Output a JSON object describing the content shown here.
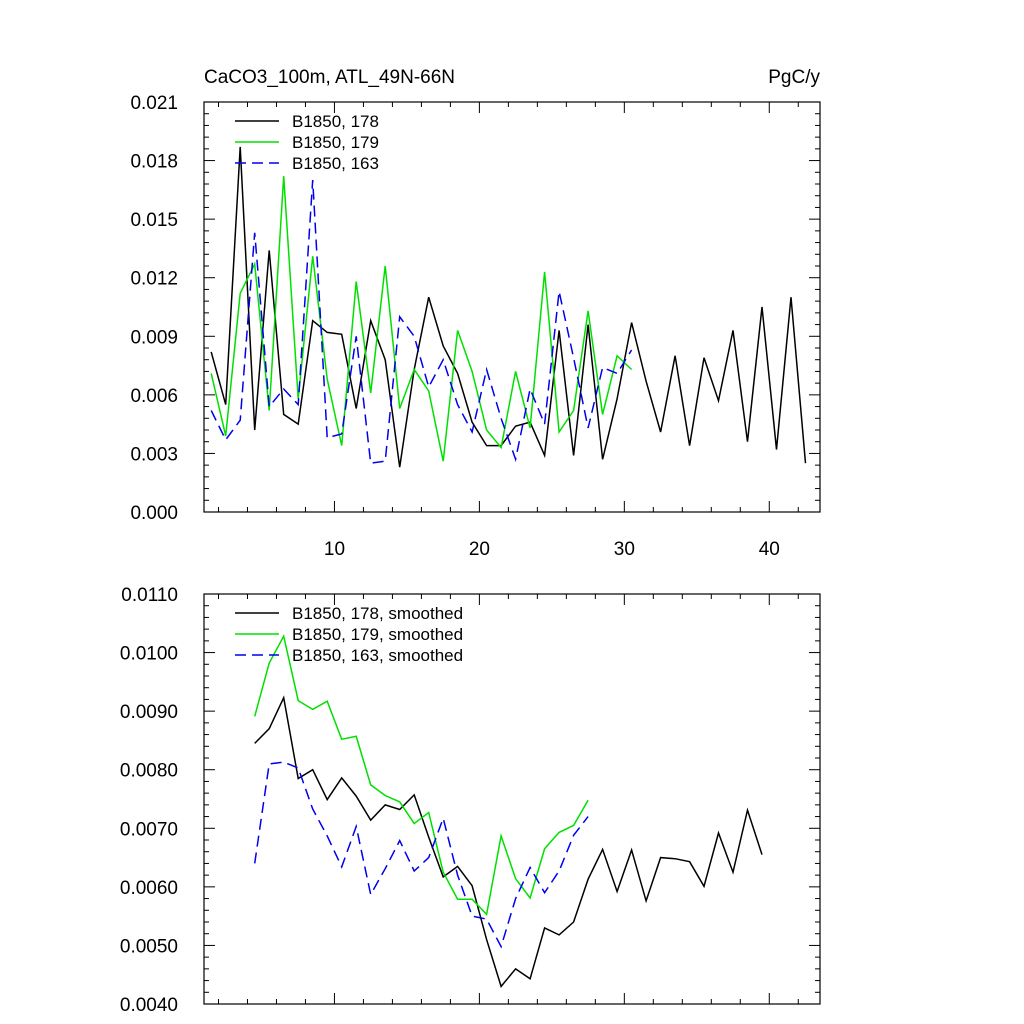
{
  "colors": {
    "black": "#000000",
    "green": "#00e000",
    "blue": "#0000ee"
  },
  "chart_data": [
    {
      "type": "line",
      "title": "CaCO3_100m, ATL_49N-66N",
      "units": "PgC/y",
      "xlabel": "",
      "ylabel": "",
      "xlim": [
        1,
        43.5
      ],
      "ylim": [
        0,
        0.021
      ],
      "xticks": [
        10,
        20,
        30,
        40
      ],
      "yticks": [
        0.0,
        0.003,
        0.006,
        0.009,
        0.012,
        0.015,
        0.018,
        0.021
      ],
      "ytick_labels": [
        "0.000",
        "0.003",
        "0.006",
        "0.009",
        "0.012",
        "0.015",
        "0.018",
        "0.021"
      ],
      "xtick_labels": [
        "10",
        "20",
        "30",
        "40"
      ],
      "legend_position": "top-left",
      "series": [
        {
          "name": "B1850, 178",
          "color": "black",
          "dash": "solid",
          "x": [
            1.5,
            2.5,
            3.5,
            4.5,
            5.5,
            6.5,
            7.5,
            8.5,
            9.5,
            10.5,
            11.5,
            12.5,
            13.5,
            14.5,
            15.5,
            16.5,
            17.5,
            18.5,
            19.5,
            20.5,
            21.5,
            22.5,
            23.5,
            24.5,
            25.5,
            26.5,
            27.5,
            28.5,
            29.5,
            30.5,
            31.5,
            32.5,
            33.5,
            34.5,
            35.5,
            36.5,
            37.5,
            38.5,
            39.5,
            40.5,
            41.5,
            42.5
          ],
          "y": [
            0.0082,
            0.0055,
            0.0187,
            0.0042,
            0.0134,
            0.005,
            0.0045,
            0.0098,
            0.0092,
            0.0091,
            0.0053,
            0.0098,
            0.0078,
            0.0023,
            0.0073,
            0.011,
            0.0085,
            0.0071,
            0.0046,
            0.0034,
            0.0034,
            0.0044,
            0.0046,
            0.0029,
            0.0093,
            0.0029,
            0.0096,
            0.0027,
            0.0058,
            0.0097,
            0.0067,
            0.0041,
            0.008,
            0.0034,
            0.0079,
            0.0057,
            0.0093,
            0.0036,
            0.0105,
            0.0032,
            0.011,
            0.0025
          ]
        },
        {
          "name": "B1850, 179",
          "color": "green",
          "dash": "solid",
          "x": [
            1.5,
            2.5,
            3.5,
            4.5,
            5.5,
            6.5,
            7.5,
            8.5,
            9.5,
            10.5,
            11.5,
            12.5,
            13.5,
            14.5,
            15.5,
            16.5,
            17.5,
            18.5,
            19.5,
            20.5,
            21.5,
            22.5,
            23.5,
            24.5,
            25.5,
            26.5,
            27.5,
            28.5,
            29.5,
            30.5
          ],
          "y": [
            0.0071,
            0.0039,
            0.0112,
            0.0127,
            0.0052,
            0.0172,
            0.0058,
            0.0131,
            0.0068,
            0.0034,
            0.0118,
            0.0061,
            0.0126,
            0.0053,
            0.0073,
            0.0062,
            0.0026,
            0.0093,
            0.0072,
            0.0042,
            0.0033,
            0.0072,
            0.0043,
            0.0123,
            0.0041,
            0.0052,
            0.0103,
            0.005,
            0.008,
            0.0073
          ]
        },
        {
          "name": "B1850, 163",
          "color": "blue",
          "dash": "dashed",
          "x": [
            1.5,
            2.5,
            3.5,
            4.5,
            5.5,
            6.5,
            7.5,
            8.5,
            9.5,
            10.5,
            11.5,
            12.5,
            13.5,
            14.5,
            15.5,
            16.5,
            17.5,
            18.5,
            19.5,
            20.5,
            21.5,
            22.5,
            23.5,
            24.5,
            25.5,
            26.5,
            27.5,
            28.5,
            29.5,
            30.5
          ],
          "y": [
            0.0052,
            0.0037,
            0.0047,
            0.0143,
            0.0054,
            0.0063,
            0.0055,
            0.017,
            0.0038,
            0.004,
            0.009,
            0.0025,
            0.0026,
            0.01,
            0.009,
            0.0064,
            0.0078,
            0.0055,
            0.0041,
            0.0073,
            0.0048,
            0.0027,
            0.0063,
            0.0045,
            0.0113,
            0.0079,
            0.0043,
            0.0074,
            0.0071,
            0.0083
          ]
        }
      ]
    },
    {
      "type": "line",
      "title": "",
      "xlabel": "",
      "ylabel": "",
      "xlim": [
        1,
        43.5
      ],
      "ylim": [
        0.004,
        0.011
      ],
      "xticks": [
        10,
        20,
        30,
        40
      ],
      "yticks": [
        0.004,
        0.005,
        0.006,
        0.007,
        0.008,
        0.009,
        0.01,
        0.011
      ],
      "ytick_labels": [
        "0.0040",
        "0.0050",
        "0.0060",
        "0.0070",
        "0.0080",
        "0.0090",
        "0.0100",
        "0.0110"
      ],
      "legend_position": "top-left",
      "series": [
        {
          "name": "B1850, 178, smoothed",
          "color": "black",
          "dash": "solid",
          "x": [
            4.5,
            5.5,
            6.5,
            7.5,
            8.5,
            9.5,
            10.5,
            11.5,
            12.5,
            13.5,
            14.5,
            15.5,
            16.5,
            17.5,
            18.5,
            19.5,
            20.5,
            21.5,
            22.5,
            23.5,
            24.5,
            25.5,
            26.5,
            27.5,
            28.5,
            29.5,
            30.5,
            31.5,
            32.5,
            33.5,
            34.5,
            35.5,
            36.5,
            37.5,
            38.5,
            39.5
          ],
          "y": [
            0.00845,
            0.0087,
            0.00923,
            0.00785,
            0.008,
            0.00749,
            0.00786,
            0.00755,
            0.00714,
            0.0074,
            0.00732,
            0.00757,
            0.00685,
            0.00617,
            0.00635,
            0.00602,
            0.0051,
            0.0043,
            0.0046,
            0.00443,
            0.0053,
            0.00518,
            0.0054,
            0.00613,
            0.00664,
            0.00592,
            0.00663,
            0.00576,
            0.0065,
            0.00648,
            0.00643,
            0.00601,
            0.00692,
            0.00625,
            0.00731,
            0.00655
          ]
        },
        {
          "name": "B1850, 179, smoothed",
          "color": "green",
          "dash": "solid",
          "x": [
            4.5,
            5.5,
            6.5,
            7.5,
            8.5,
            9.5,
            10.5,
            11.5,
            12.5,
            13.5,
            14.5,
            15.5,
            16.5,
            17.5,
            18.5,
            19.5,
            20.5,
            21.5,
            22.5,
            23.5,
            24.5,
            25.5,
            26.5,
            27.5
          ],
          "y": [
            0.00891,
            0.00982,
            0.01028,
            0.00918,
            0.00903,
            0.00917,
            0.00852,
            0.00857,
            0.00774,
            0.00756,
            0.00745,
            0.00708,
            0.00727,
            0.00625,
            0.00579,
            0.00579,
            0.00553,
            0.00687,
            0.00614,
            0.00581,
            0.00665,
            0.00693,
            0.00705,
            0.00748
          ]
        },
        {
          "name": "B1850, 163, smoothed",
          "color": "blue",
          "dash": "dashed",
          "x": [
            4.5,
            5.5,
            6.5,
            7.5,
            8.5,
            9.5,
            10.5,
            11.5,
            12.5,
            13.5,
            14.5,
            15.5,
            16.5,
            17.5,
            18.5,
            19.5,
            20.5,
            21.5,
            22.5,
            23.5,
            24.5,
            25.5,
            26.5,
            27.5
          ],
          "y": [
            0.0064,
            0.0081,
            0.00813,
            0.00803,
            0.00733,
            0.00687,
            0.00634,
            0.00703,
            0.00587,
            0.00631,
            0.00679,
            0.00627,
            0.0065,
            0.00717,
            0.0062,
            0.0055,
            0.00545,
            0.00498,
            0.0058,
            0.00633,
            0.0059,
            0.00627,
            0.00688,
            0.0072
          ]
        }
      ]
    }
  ]
}
